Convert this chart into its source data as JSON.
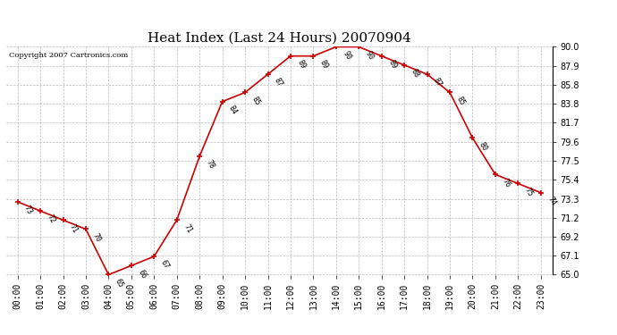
{
  "title": "Heat Index (Last 24 Hours) 20070904",
  "copyright": "Copyright 2007 Cartronics.com",
  "hours": [
    "00:00",
    "01:00",
    "02:00",
    "03:00",
    "04:00",
    "05:00",
    "06:00",
    "07:00",
    "08:00",
    "09:00",
    "10:00",
    "11:00",
    "12:00",
    "13:00",
    "14:00",
    "15:00",
    "16:00",
    "17:00",
    "18:00",
    "19:00",
    "20:00",
    "21:00",
    "22:00",
    "23:00"
  ],
  "values": [
    73,
    72,
    71,
    70,
    65,
    66,
    67,
    71,
    78,
    84,
    85,
    87,
    89,
    89,
    90,
    90,
    89,
    88,
    87,
    85,
    80,
    76,
    75,
    74
  ],
  "ylim": [
    65.0,
    90.0
  ],
  "yticks": [
    65.0,
    67.1,
    69.2,
    71.2,
    73.3,
    75.4,
    77.5,
    79.6,
    81.7,
    83.8,
    85.8,
    87.9,
    90.0
  ],
  "line_color": "#cc0000",
  "marker_color": "#cc0000",
  "bg_color": "#ffffff",
  "grid_color": "#bbbbbb",
  "title_fontsize": 11,
  "label_fontsize": 7,
  "annotation_fontsize": 6,
  "copyright_fontsize": 6
}
